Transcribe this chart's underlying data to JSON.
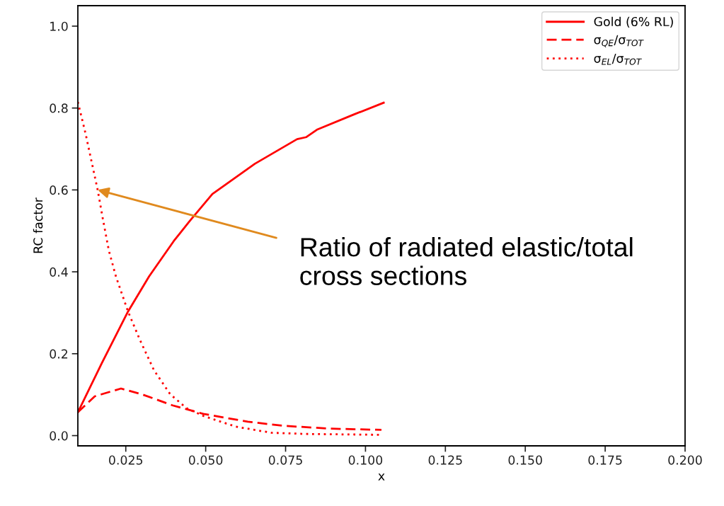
{
  "chart_data": {
    "type": "line",
    "xlabel": "x",
    "ylabel": "RC factor",
    "xlim": [
      0.01,
      0.2
    ],
    "ylim": [
      -0.025,
      1.05
    ],
    "xticks": [
      {
        "value": 0.025,
        "label": "0.025"
      },
      {
        "value": 0.05,
        "label": "0.050"
      },
      {
        "value": 0.075,
        "label": "0.075"
      },
      {
        "value": 0.1,
        "label": "0.100"
      },
      {
        "value": 0.125,
        "label": "0.125"
      },
      {
        "value": 0.15,
        "label": "0.150"
      },
      {
        "value": 0.175,
        "label": "0.175"
      },
      {
        "value": 0.2,
        "label": "0.200"
      }
    ],
    "yticks": [
      {
        "value": 0,
        "label": "0.0"
      },
      {
        "value": 0.2,
        "label": "0.2"
      },
      {
        "value": 0.4,
        "label": "0.4"
      },
      {
        "value": 0.6,
        "label": "0.6"
      },
      {
        "value": 0.8,
        "label": "0.8"
      },
      {
        "value": 1,
        "label": "1.0"
      }
    ],
    "grid": false,
    "legend": "top right",
    "marker": "none",
    "series": [
      {
        "name": "Gold (6% RL)",
        "color": "#ff0000",
        "line_style": "solid",
        "x": [
          0.01,
          0.0175,
          0.0257,
          0.0323,
          0.04,
          0.0449,
          0.0521,
          0.0654,
          0.0786,
          0.0815,
          0.0848,
          0.0963,
          0.1057
        ],
        "values": [
          0.057,
          0.177,
          0.303,
          0.389,
          0.475,
          0.523,
          0.59,
          0.664,
          0.724,
          0.729,
          0.747,
          0.784,
          0.813
        ]
      },
      {
        "name": "σ$_{QE}$/σ$_{TOT}$",
        "color": "#ff0000",
        "line_style": "dashed",
        "x": [
          0.01,
          0.0153,
          0.0235,
          0.03,
          0.0396,
          0.0493,
          0.0632,
          0.0742,
          0.089,
          0.105
        ],
        "values": [
          0.057,
          0.096,
          0.115,
          0.101,
          0.074,
          0.053,
          0.034,
          0.024,
          0.017,
          0.014
        ]
      },
      {
        "name": "σ$_{EL}$/σ$_{TOT}$",
        "color": "#ff0000",
        "line_style": "dotted",
        "x": [
          0.01,
          0.0124,
          0.0146,
          0.0162,
          0.0179,
          0.0197,
          0.0219,
          0.0257,
          0.0294,
          0.0338,
          0.0389,
          0.044,
          0.0493,
          0.0594,
          0.0705,
          0.0815,
          0.1044
        ],
        "values": [
          0.815,
          0.738,
          0.658,
          0.6,
          0.526,
          0.452,
          0.389,
          0.303,
          0.234,
          0.16,
          0.101,
          0.067,
          0.048,
          0.022,
          0.007,
          0.004,
          0.002
        ]
      }
    ],
    "annotations": [
      {
        "text": "Ratio of radiated elastic/total\ncross sections",
        "x": 0.0162,
        "y": 0.6
      }
    ]
  }
}
